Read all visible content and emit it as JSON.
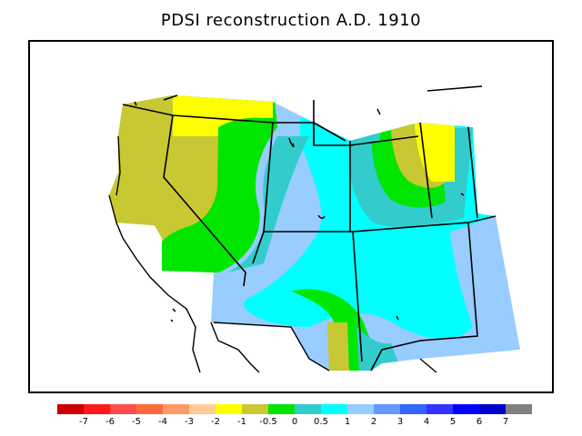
{
  "title": "PDSI reconstruction A.D. 1910",
  "legend": {
    "colors": [
      "#cc0000",
      "#ff1a1a",
      "#ff4d4d",
      "#ff6b3d",
      "#ff9966",
      "#ffcc99",
      "#ffff00",
      "#c8c832",
      "#00e600",
      "#33cccc",
      "#00ffff",
      "#99ccff",
      "#6699ff",
      "#3366ff",
      "#3333ff",
      "#0000ff",
      "#0000cc",
      "#808080"
    ],
    "ticks": [
      "-7",
      "-6",
      "-5",
      "-4",
      "-3",
      "-2",
      "-1",
      "-0.5",
      "0",
      "0.5",
      "1",
      "2",
      "3",
      "4",
      "5",
      "6",
      "7"
    ]
  }
}
